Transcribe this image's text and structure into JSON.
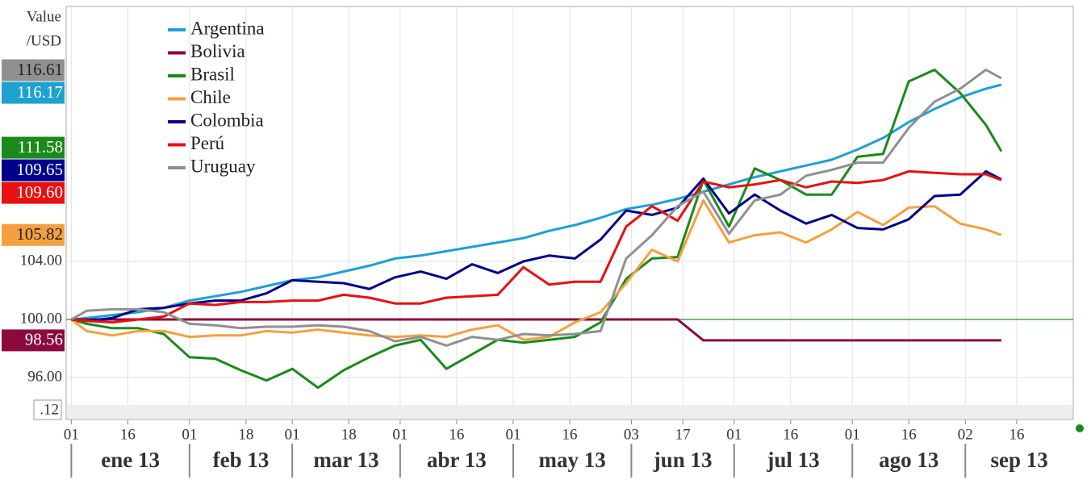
{
  "chart_data": {
    "type": "line",
    "y_label": [
      "Value",
      "/USD"
    ],
    "corner_label": ".12",
    "legend": "upper left",
    "grid": true,
    "reference_line": {
      "value": 100,
      "color": "#2a8a2a"
    },
    "xlim": [
      "2012-12-31",
      "2013-10-01"
    ],
    "ylim": [
      93.11,
      121.56
    ],
    "yticks": [
      {
        "value": 96,
        "label": "96.00"
      },
      {
        "value": 100,
        "label": "100.00"
      },
      {
        "value": 104,
        "label": "104.00"
      }
    ],
    "xticks": [
      {
        "value": "2013-01-01",
        "label": "01"
      },
      {
        "value": "2013-01-16",
        "label": "16"
      },
      {
        "value": "2013-02-01",
        "label": "01"
      },
      {
        "value": "2013-02-18",
        "label": "18"
      },
      {
        "value": "2013-03-01",
        "label": "01"
      },
      {
        "value": "2013-03-18",
        "label": "18"
      },
      {
        "value": "2013-04-01",
        "label": "01"
      },
      {
        "value": "2013-04-16",
        "label": "16"
      },
      {
        "value": "2013-05-01",
        "label": "01"
      },
      {
        "value": "2013-05-16",
        "label": "16"
      },
      {
        "value": "2013-06-03",
        "label": "03"
      },
      {
        "value": "2013-06-17",
        "label": "17"
      },
      {
        "value": "2013-07-01",
        "label": "01"
      },
      {
        "value": "2013-07-16",
        "label": "16"
      },
      {
        "value": "2013-08-01",
        "label": "01"
      },
      {
        "value": "2013-08-16",
        "label": "16"
      },
      {
        "value": "2013-09-02",
        "label": "02"
      },
      {
        "value": "2013-09-16",
        "label": "16"
      }
    ],
    "months": [
      {
        "value": "2013-01-01",
        "label": "ene 13"
      },
      {
        "value": "2013-02-01",
        "label": "feb 13"
      },
      {
        "value": "2013-03-01",
        "label": "mar 13"
      },
      {
        "value": "2013-04-01",
        "label": "abr 13"
      },
      {
        "value": "2013-05-01",
        "label": "may 13"
      },
      {
        "value": "2013-06-03",
        "label": "jun 13"
      },
      {
        "value": "2013-07-01",
        "label": "jul 13"
      },
      {
        "value": "2013-08-01",
        "label": "ago 13"
      },
      {
        "value": "2013-09-02",
        "label": "sep 13"
      }
    ],
    "x": [
      "2013-01-01",
      "2013-01-04",
      "2013-01-11",
      "2013-01-18",
      "2013-01-25",
      "2013-02-01",
      "2013-02-08",
      "2013-02-15",
      "2013-02-22",
      "2013-03-01",
      "2013-03-08",
      "2013-03-15",
      "2013-03-22",
      "2013-03-29",
      "2013-04-05",
      "2013-04-12",
      "2013-04-19",
      "2013-04-26",
      "2013-05-03",
      "2013-05-10",
      "2013-05-17",
      "2013-05-24",
      "2013-05-31",
      "2013-06-07",
      "2013-06-14",
      "2013-06-21",
      "2013-06-28",
      "2013-07-05",
      "2013-07-12",
      "2013-07-19",
      "2013-07-26",
      "2013-08-02",
      "2013-08-09",
      "2013-08-16",
      "2013-08-23",
      "2013-08-30",
      "2013-09-06",
      "2013-09-11"
    ],
    "series": [
      {
        "name": "Argentina",
        "color": "#1ea0d2",
        "end_label": "116.17",
        "values": [
          100,
          100.1,
          100.3,
          100.5,
          100.8,
          101.3,
          101.6,
          101.9,
          102.3,
          102.7,
          102.9,
          103.3,
          103.7,
          104.2,
          104.4,
          104.7,
          105,
          105.3,
          105.6,
          106.1,
          106.5,
          107,
          107.6,
          107.9,
          108.3,
          108.8,
          109.3,
          109.8,
          110.2,
          110.6,
          111,
          111.7,
          112.5,
          113.6,
          114.5,
          115.3,
          115.9,
          116.17
        ]
      },
      {
        "name": "Bolivia",
        "color": "#8b0a3c",
        "end_label": "98.56",
        "values": [
          100,
          100,
          100,
          100,
          100,
          100,
          100,
          100,
          100,
          100,
          100,
          100,
          100,
          100,
          100,
          100,
          100,
          100,
          100,
          100,
          100,
          100,
          100,
          100,
          100,
          98.56,
          98.56,
          98.56,
          98.56,
          98.56,
          98.56,
          98.56,
          98.56,
          98.56,
          98.56,
          98.56,
          98.56,
          98.56
        ]
      },
      {
        "name": "Brasil",
        "color": "#1a8a1a",
        "end_label": "111.58",
        "values": [
          100,
          99.7,
          99.4,
          99.4,
          99,
          97.4,
          97.3,
          96.5,
          95.8,
          96.6,
          95.3,
          96.5,
          97.4,
          98.2,
          98.6,
          96.6,
          97.6,
          98.6,
          98.4,
          98.6,
          98.8,
          99.8,
          102.8,
          104.2,
          104.3,
          109.6,
          106.4,
          110.4,
          109.6,
          108.6,
          108.6,
          111.2,
          111.4,
          116.4,
          117.2,
          115.6,
          113.4,
          111.58
        ]
      },
      {
        "name": "Chile",
        "color": "#f5a040",
        "end_label": "105.82",
        "values": [
          100,
          99.2,
          98.9,
          99.2,
          99.2,
          98.8,
          98.9,
          98.9,
          99.2,
          99.1,
          99.3,
          99.1,
          98.9,
          98.8,
          98.9,
          98.8,
          99.3,
          99.6,
          98.6,
          98.8,
          99.8,
          100.5,
          102.5,
          104.8,
          104,
          108.2,
          105.3,
          105.8,
          106,
          105.3,
          106.2,
          107.4,
          106.5,
          107.7,
          107.8,
          106.6,
          106.2,
          105.82
        ]
      },
      {
        "name": "Colombia",
        "color": "#00008b",
        "end_label": "109.65",
        "values": [
          100,
          99.9,
          100.1,
          100.7,
          100.8,
          101.1,
          101.3,
          101.3,
          101.8,
          102.7,
          102.6,
          102.5,
          102.1,
          102.9,
          103.3,
          102.8,
          103.8,
          103.2,
          104,
          104.4,
          104.2,
          105.5,
          107.5,
          107.2,
          107.7,
          109.7,
          107.3,
          108.6,
          107.5,
          106.6,
          107.2,
          106.3,
          106.2,
          106.9,
          108.5,
          108.6,
          110.2,
          109.65
        ]
      },
      {
        "name": "Perú",
        "color": "#e81010",
        "end_label": "109.60",
        "values": [
          100,
          99.9,
          99.8,
          100,
          100.2,
          101.1,
          101,
          101.2,
          101.2,
          101.3,
          101.3,
          101.7,
          101.5,
          101.1,
          101.1,
          101.5,
          101.6,
          101.7,
          103.6,
          102.4,
          102.6,
          102.6,
          106.4,
          107.8,
          106.8,
          109.5,
          109.1,
          109.3,
          109.6,
          109.1,
          109.5,
          109.4,
          109.6,
          110.2,
          110.1,
          110,
          110,
          109.6
        ]
      },
      {
        "name": "Uruguay",
        "color": "#909090",
        "end_label": "116.61",
        "values": [
          100,
          100.6,
          100.7,
          100.7,
          100.5,
          99.7,
          99.6,
          99.4,
          99.5,
          99.5,
          99.6,
          99.5,
          99.2,
          98.5,
          98.8,
          98.2,
          98.8,
          98.6,
          99,
          98.9,
          99,
          99.2,
          104.2,
          105.8,
          107.8,
          108.8,
          105.9,
          108.2,
          108.6,
          109.9,
          110.3,
          110.8,
          110.8,
          113.2,
          115,
          115.9,
          117.2,
          116.61
        ]
      }
    ]
  }
}
